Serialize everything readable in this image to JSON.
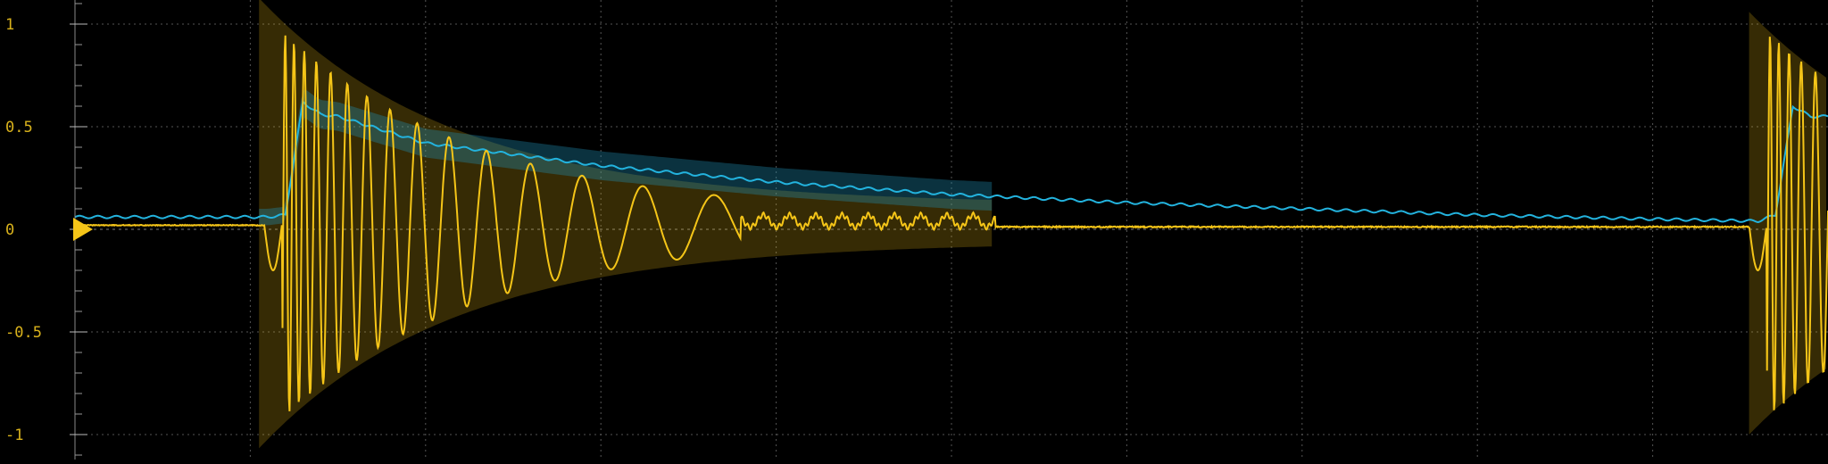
{
  "chart_data": {
    "type": "line",
    "title": "",
    "xlabel": "",
    "ylabel": "",
    "ylim": [
      -1.1,
      1.1
    ],
    "xlim": [
      0,
      1
    ],
    "grid": true,
    "y_ticks": [
      {
        "value": 1,
        "label": "1"
      },
      {
        "value": 0.5,
        "label": "0.5"
      },
      {
        "value": 0,
        "label": "0"
      },
      {
        "value": -0.5,
        "label": "-0.5"
      },
      {
        "value": -1,
        "label": "-1"
      }
    ],
    "x_divisions": 10,
    "trigger_level": 0,
    "series": [
      {
        "color": "#f5c518",
        "band_color": "#f5c518",
        "x": [
          0,
          0.11,
          0.115,
          0.12,
          0.13,
          0.14,
          0.15,
          0.16,
          0.17,
          0.18,
          0.19,
          0.2,
          0.22,
          0.25,
          0.3,
          0.35,
          0.4,
          0.45,
          0.5,
          0.52,
          0.525,
          0.53,
          0.6,
          0.7,
          0.8,
          0.9,
          0.95,
          0.96,
          0.97,
          0.98,
          0.99,
          1.0
        ],
        "y": [
          0.02,
          0.02,
          -0.1,
          -0.22,
          0.97,
          -0.97,
          0.73,
          -0.6,
          0.55,
          -0.32,
          0.35,
          0.28,
          0.22,
          0.15,
          0.09,
          0.05,
          0.04,
          0.05,
          0.03,
          0.05,
          0.02,
          0.01,
          0.01,
          0.01,
          0.01,
          0.01,
          0.02,
          -0.22,
          0.96,
          -0.97,
          0.5,
          0.3
        ]
      },
      {
        "color": "#23b3de",
        "band_color": "#1f8fb5",
        "x": [
          0,
          0.11,
          0.12,
          0.13,
          0.14,
          0.15,
          0.2,
          0.3,
          0.4,
          0.5,
          0.6,
          0.7,
          0.8,
          0.9,
          0.96,
          0.97,
          0.98,
          0.99,
          1.0
        ],
        "y": [
          0.06,
          0.06,
          0.07,
          0.62,
          0.56,
          0.55,
          0.42,
          0.31,
          0.23,
          0.17,
          0.13,
          0.1,
          0.07,
          0.05,
          0.04,
          0.07,
          0.6,
          0.55,
          0.55
        ]
      }
    ]
  }
}
